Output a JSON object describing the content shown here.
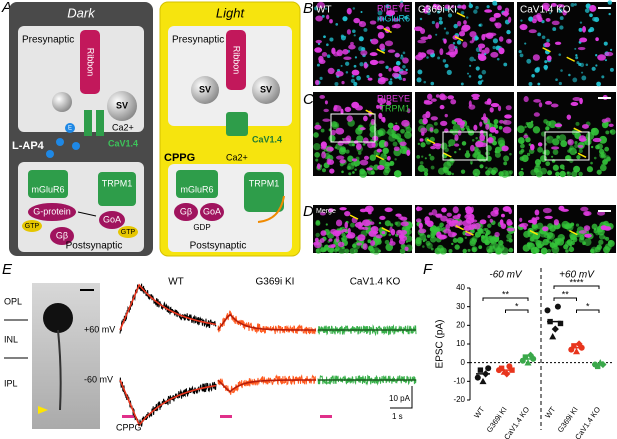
{
  "panel_a": {
    "label": "A",
    "dark": {
      "title": "Dark",
      "presynaptic": "Presynaptic",
      "ribbon": "Ribbon",
      "sv": "SV",
      "channel": "CaV1.4",
      "ion": "Ca2+",
      "e": "E",
      "drug": "L-AP4",
      "receptor": "mGluR6",
      "trpm1": "TRPM1",
      "gprotein": "G-protein",
      "gtp": "GTP",
      "gb": "Gβ",
      "goa": "GoA",
      "gtp2": "GTP",
      "postsynaptic": "Postsynaptic"
    },
    "light": {
      "title": "Light",
      "presynaptic": "Presynaptic",
      "ribbon": "Ribbon",
      "sv": "SV",
      "sv2": "SV",
      "channel": "CaV1.4",
      "drug": "CPPG",
      "receptor": "mGluR6",
      "ion": "Ca2+",
      "trpm1": "TRPM1",
      "gb": "Gβ",
      "goa": "GoA",
      "gdp": "GDP",
      "postsynaptic": "Postsynaptic"
    }
  },
  "panel_b": {
    "label": "B",
    "columns": [
      "WT",
      "G369i KI",
      "CaV1.4 KO"
    ],
    "stain1": "RIBEYE",
    "stain2": "mGluR6"
  },
  "panel_c": {
    "label": "C",
    "stain1": "RIBEYE",
    "stain2": "TRPM1"
  },
  "panel_d": {
    "label": "D",
    "stain": "Merge"
  },
  "panel_e": {
    "label": "E",
    "layers": [
      "OPL",
      "INL",
      "IPL"
    ],
    "genotypes": [
      "WT",
      "G369i KI",
      "CaV1.4 KO"
    ],
    "voltages": [
      "+60 mV",
      "-60 mV"
    ],
    "stimulus": "CPPG",
    "scale_y": "10 pA",
    "scale_x": "1 s"
  },
  "chart_data": {
    "type": "dot",
    "label": "F",
    "ylabel": "EPSC (pA)",
    "ylim": [
      -20,
      40
    ],
    "yticks": [
      -20,
      -10,
      0,
      10,
      20,
      30,
      40
    ],
    "colors": [
      "#111111",
      "#e8341c",
      "#3aa84a"
    ],
    "groups": [
      {
        "title": "-60 mV",
        "categories": [
          "WT",
          "G369i KI",
          "CaV1.4 KO"
        ],
        "values": [
          [
            -8,
            -4,
            -10,
            -6,
            -3
          ],
          [
            -4,
            -3,
            -5,
            -6,
            -2,
            -4
          ],
          [
            1,
            3,
            0,
            4,
            2
          ]
        ],
        "means": [
          -6,
          -4,
          2
        ],
        "significance": [
          "**",
          "*"
        ]
      },
      {
        "title": "+60 mV",
        "categories": [
          "WT",
          "G369i KI",
          "CaV1.4 KO"
        ],
        "values": [
          [
            28,
            22,
            14,
            18,
            30,
            21
          ],
          [
            7,
            9,
            6,
            10,
            8
          ],
          [
            -1,
            -2,
            0,
            -1
          ]
        ],
        "means": [
          22,
          8,
          -1
        ],
        "significance": [
          "****",
          "**",
          "*"
        ]
      }
    ]
  }
}
